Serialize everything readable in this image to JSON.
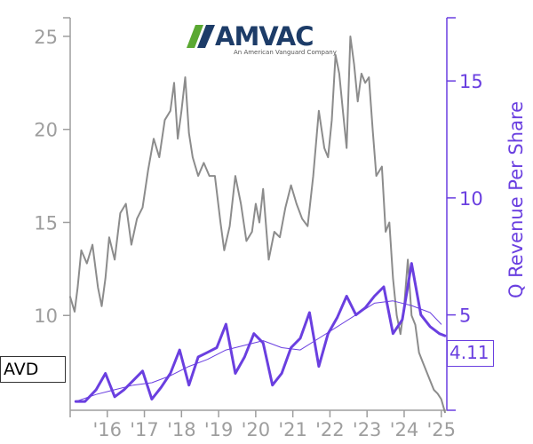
{
  "logo": {
    "name": "AMVAC",
    "tagline": "An American Vanguard Company",
    "colors": {
      "green": "#5aa832",
      "navy": "#1d3c68"
    }
  },
  "ticker": "AVD",
  "last_value_label": "4.11",
  "colors": {
    "price": "#8c8c8c",
    "revenue": "#6a3fe0",
    "left_axis": "#9e9e9e"
  },
  "chart_data": {
    "type": "line",
    "ylabel_right": "Q Revenue Per Share",
    "xlim": [
      2015.0,
      2025.15
    ],
    "ylim_left": [
      5.0,
      26.0
    ],
    "ylim_right": [
      1.0,
      17.7
    ],
    "left_ticks": [
      {
        "value": 10,
        "label": "10"
      },
      {
        "value": 15,
        "label": "15"
      },
      {
        "value": 20,
        "label": "20"
      },
      {
        "value": 25,
        "label": "25"
      }
    ],
    "right_ticks": [
      {
        "value": 5,
        "label": "5"
      },
      {
        "value": 10,
        "label": "10"
      },
      {
        "value": 15,
        "label": "15"
      }
    ],
    "x_ticks": [
      {
        "value": 2016,
        "label": "'16"
      },
      {
        "value": 2017,
        "label": "'17"
      },
      {
        "value": 2018,
        "label": "'18"
      },
      {
        "value": 2019,
        "label": "'19"
      },
      {
        "value": 2020,
        "label": "'20"
      },
      {
        "value": 2021,
        "label": "'21"
      },
      {
        "value": 2022,
        "label": "'22"
      },
      {
        "value": 2023,
        "label": "'23"
      },
      {
        "value": 2024,
        "label": "'24"
      },
      {
        "value": 2025,
        "label": "'25"
      }
    ],
    "series": [
      {
        "axis": "left",
        "style": "price",
        "x": [
          2015.0,
          2015.12,
          2015.2,
          2015.3,
          2015.45,
          2015.6,
          2015.75,
          2015.85,
          2015.95,
          2016.05,
          2016.2,
          2016.35,
          2016.5,
          2016.65,
          2016.8,
          2016.95,
          2017.1,
          2017.25,
          2017.4,
          2017.55,
          2017.7,
          2017.8,
          2017.9,
          2018.0,
          2018.1,
          2018.2,
          2018.3,
          2018.45,
          2018.6,
          2018.75,
          2018.9,
          2019.05,
          2019.15,
          2019.3,
          2019.45,
          2019.6,
          2019.75,
          2019.9,
          2020.0,
          2020.1,
          2020.2,
          2020.35,
          2020.5,
          2020.65,
          2020.8,
          2020.95,
          2021.1,
          2021.25,
          2021.4,
          2021.55,
          2021.7,
          2021.85,
          2021.95,
          2022.05,
          2022.15,
          2022.25,
          2022.35,
          2022.45,
          2022.55,
          2022.65,
          2022.75,
          2022.85,
          2022.95,
          2023.05,
          2023.15,
          2023.25,
          2023.4,
          2023.5,
          2023.6,
          2023.7,
          2023.8,
          2023.9,
          2024.0,
          2024.1,
          2024.2,
          2024.3,
          2024.4,
          2024.5,
          2024.6,
          2024.7,
          2024.8,
          2024.9,
          2025.0,
          2025.1
        ],
        "values": [
          11.0,
          10.2,
          11.5,
          13.5,
          12.8,
          13.8,
          11.5,
          10.5,
          12.0,
          14.2,
          13.0,
          15.5,
          16.0,
          13.8,
          15.2,
          15.8,
          17.8,
          19.5,
          18.5,
          20.5,
          21.0,
          22.5,
          19.5,
          21.0,
          22.8,
          19.8,
          18.5,
          17.5,
          18.2,
          17.5,
          17.5,
          15.0,
          13.5,
          14.8,
          17.5,
          16.0,
          14.0,
          14.5,
          16.0,
          15.0,
          16.8,
          13.0,
          14.5,
          14.2,
          15.8,
          17.0,
          16.0,
          15.2,
          14.8,
          17.5,
          21.0,
          19.0,
          18.5,
          20.5,
          24.0,
          23.0,
          21.0,
          19.0,
          25.0,
          23.5,
          21.5,
          23.0,
          22.5,
          22.8,
          20.0,
          17.5,
          18.0,
          14.5,
          15.0,
          12.0,
          10.0,
          9.0,
          10.5,
          13.0,
          10.0,
          9.5,
          8.0,
          7.5,
          7.0,
          6.5,
          6.0,
          5.8,
          5.5,
          4.8
        ]
      },
      {
        "axis": "right",
        "style": "revenue",
        "x": [
          2015.15,
          2015.4,
          2015.7,
          2015.95,
          2016.2,
          2016.45,
          2016.7,
          2016.95,
          2017.2,
          2017.45,
          2017.7,
          2017.95,
          2018.2,
          2018.45,
          2018.7,
          2018.95,
          2019.2,
          2019.45,
          2019.7,
          2019.95,
          2020.2,
          2020.45,
          2020.7,
          2020.95,
          2021.2,
          2021.45,
          2021.7,
          2021.95,
          2022.2,
          2022.45,
          2022.7,
          2022.95,
          2023.2,
          2023.45,
          2023.7,
          2023.95,
          2024.2,
          2024.45,
          2024.7,
          2024.95,
          2025.1
        ],
        "values": [
          1.3,
          1.3,
          1.8,
          2.5,
          1.5,
          1.8,
          2.2,
          2.6,
          1.4,
          1.9,
          2.5,
          3.5,
          2.0,
          3.2,
          3.4,
          3.6,
          4.6,
          2.5,
          3.2,
          4.2,
          3.8,
          2.0,
          2.5,
          3.6,
          4.0,
          5.1,
          2.8,
          4.2,
          4.9,
          5.8,
          5.0,
          5.3,
          5.8,
          6.2,
          4.2,
          4.8,
          7.2,
          5.0,
          4.5,
          4.2,
          4.11
        ]
      },
      {
        "axis": "right",
        "style": "revenue-smooth",
        "x": [
          2015.15,
          2015.7,
          2016.2,
          2016.7,
          2017.2,
          2017.7,
          2018.2,
          2018.7,
          2019.2,
          2019.7,
          2020.2,
          2020.7,
          2021.2,
          2021.7,
          2022.2,
          2022.7,
          2023.2,
          2023.7,
          2024.2,
          2024.7,
          2025.0
        ],
        "values": [
          1.3,
          1.6,
          1.8,
          2.0,
          2.1,
          2.4,
          2.8,
          3.1,
          3.5,
          3.7,
          3.9,
          3.6,
          3.5,
          4.0,
          4.5,
          5.0,
          5.5,
          5.6,
          5.4,
          5.1,
          4.6
        ]
      }
    ]
  }
}
